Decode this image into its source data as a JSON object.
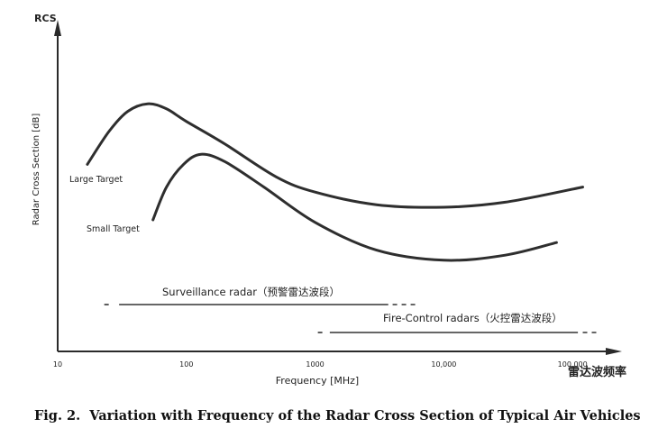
{
  "chart_data": {
    "type": "line",
    "title": "",
    "y_axis_label": "Radar Cross Section [dB]",
    "y_axis_title_top": "RCS",
    "x_axis_label": "Frequency [MHz]",
    "x_axis_label_cn": "雷达波频率",
    "x_scale": "log",
    "x_ticks": [
      "10",
      "100",
      "1000",
      "10,000",
      "100,000"
    ],
    "xlim": [
      10,
      300000
    ],
    "ylim": [
      0,
      100
    ],
    "series": [
      {
        "name": "Large Target",
        "x": [
          17,
          25,
          35,
          50,
          70,
          100,
          200,
          500,
          1000,
          3000,
          10000,
          30000,
          120000
        ],
        "y": [
          67,
          80,
          88,
          91,
          89,
          84,
          75,
          62,
          56,
          51,
          50,
          52,
          58
        ]
      },
      {
        "name": "Small Target",
        "x": [
          55,
          70,
          95,
          130,
          200,
          400,
          1000,
          3000,
          10000,
          30000,
          75000
        ],
        "y": [
          45,
          58,
          67,
          71,
          68,
          58,
          44,
          33,
          29,
          31,
          36
        ]
      }
    ],
    "bands": [
      {
        "label": "Surveillance radar（预警雷达波段）",
        "solid": [
          30,
          3700
        ],
        "dashed_before": [
          23,
          27
        ],
        "dashed_after": [
          4000,
          6100
        ]
      },
      {
        "label": "Fire-Control radars（火控雷达波段）",
        "solid": [
          1300,
          110000
        ],
        "dashed_before": [
          1050,
          1200
        ],
        "dashed_after": [
          120000,
          160000
        ]
      }
    ],
    "legend": "none",
    "grid": false,
    "caption": "Fig. 2.  Variation with Frequency of the Radar Cross Section of Typical Air Vehicles"
  }
}
